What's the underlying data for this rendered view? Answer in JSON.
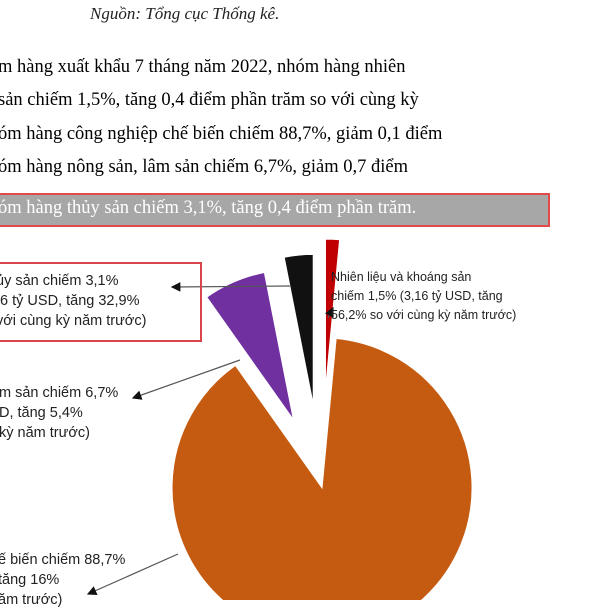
{
  "source": "Nguồn: Tổng cục Thống kê.",
  "paragraph": [
    "m hàng xuất khẩu 7 tháng năm 2022, nhóm hàng nhiên",
    " sản chiếm 1,5%, tăng 0,4 điểm phần trăm so với cùng kỳ",
    "óm hàng công nghiệp chế biến chiếm 88,7%, giảm 0,1 điểm",
    "óm hàng nông sản, lâm sản chiếm 6,7%, giảm 0,7 điểm",
    "óm hàng thủy sản chiếm 3,1%, tăng 0,4 điểm phần trăm."
  ],
  "chart_data": {
    "type": "pie",
    "slices": [
      {
        "label_lines": [
          "Nhiên liệu và khoáng sản",
          "chiếm 1,5% (3,16 tỷ USD, tăng",
          "56,2% so với cùng kỳ năm trước)"
        ],
        "value": 1.5,
        "color": "#c00000"
      },
      {
        "label_lines": [
          "ế biến chiếm 88,7%",
          "tăng 16%",
          "ăm trước)"
        ],
        "value": 88.7,
        "color": "#c55a11"
      },
      {
        "label_lines": [
          "m sản chiếm 6,7%",
          "D, tăng 5,4%",
          "kỳ năm trước)"
        ],
        "value": 6.7,
        "color": "#7030a0"
      },
      {
        "label_lines": [
          "ủy sản chiếm 3,1%",
          ",6 tỷ USD, tăng 32,9%",
          "với cùng kỳ năm trước)"
        ],
        "value": 3.1,
        "color": "#111111"
      }
    ]
  },
  "colors": {
    "highlight_bg": "#a7a7a7",
    "highlight_border": "#e04a4a"
  }
}
